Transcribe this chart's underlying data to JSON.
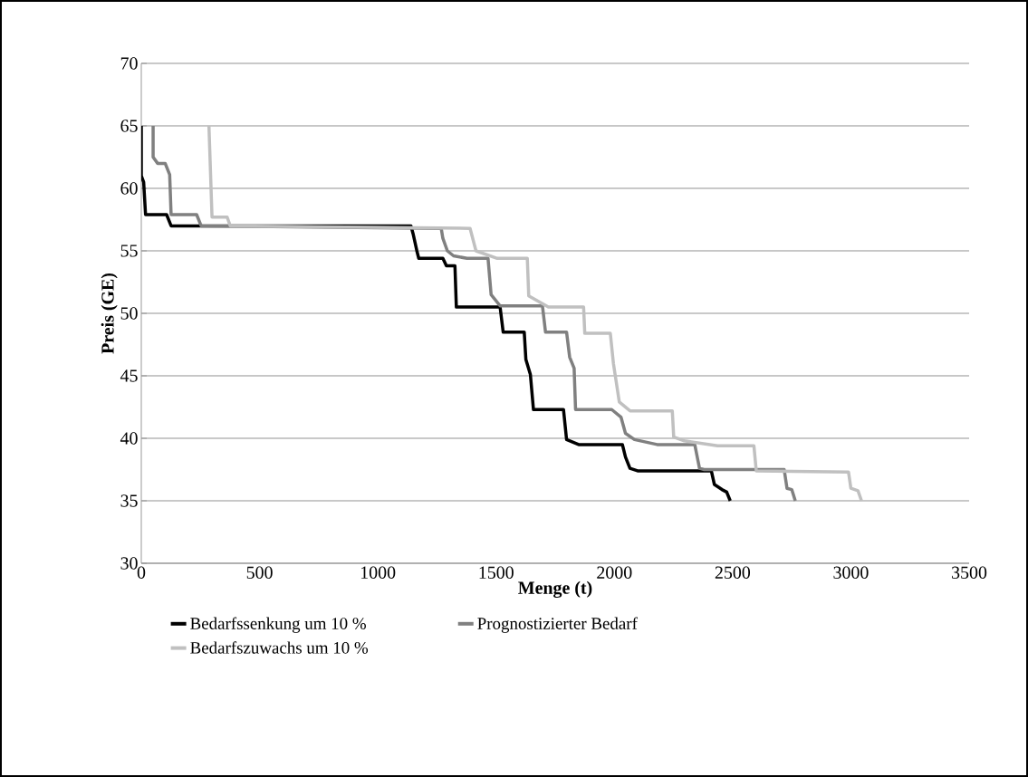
{
  "chart_data": {
    "type": "line",
    "xlabel": "Menge (t)",
    "ylabel": "Preis (GE)",
    "xlim": [
      0,
      3500
    ],
    "xticks": [
      0,
      500,
      1000,
      1500,
      2000,
      2500,
      3000,
      3500
    ],
    "ylim": [
      30,
      70
    ],
    "yticks": [
      30,
      35,
      40,
      45,
      50,
      55,
      60,
      65,
      70
    ],
    "grid": "y",
    "legend": "bottom",
    "marker": "none",
    "line_style": "solid",
    "series": [
      {
        "name": "Bedarfssenkung um 10 %",
        "color": "#000000",
        "x": [
          0,
          0,
          10,
          18,
          107,
          126,
          1140,
          1150,
          1165,
          1173,
          1275,
          1290,
          1326,
          1332,
          1517,
          1530,
          1619,
          1626,
          1645,
          1658,
          1785,
          1798,
          1849,
          2034,
          2047,
          2066,
          2098,
          2410,
          2423,
          2455,
          2475,
          2490
        ],
        "values": [
          65,
          61,
          60.5,
          57.9,
          57.9,
          57,
          57,
          56.3,
          55,
          54.4,
          54.4,
          53.8,
          53.8,
          50.5,
          50.5,
          48.5,
          48.5,
          46.3,
          45.1,
          42.3,
          42.3,
          39.9,
          39.5,
          39.5,
          38.5,
          37.6,
          37.4,
          37.4,
          36.3,
          35.9,
          35.7,
          35
        ]
      },
      {
        "name": "Prognostizierter Bedarf",
        "color": "#808080",
        "x": [
          50,
          50,
          69,
          101,
          120,
          126,
          234,
          253,
          1268,
          1275,
          1294,
          1320,
          1377,
          1466,
          1479,
          1517,
          1696,
          1709,
          1798,
          1811,
          1830,
          1836,
          1989,
          2028,
          2047,
          2085,
          2181,
          2340,
          2360,
          2380,
          2718,
          2730,
          2750,
          2765
        ],
        "values": [
          65,
          62.5,
          62,
          62,
          61.1,
          57.9,
          57.9,
          57,
          56.8,
          56,
          55,
          54.6,
          54.4,
          54.4,
          51.5,
          50.6,
          50.6,
          48.5,
          48.5,
          46.5,
          45.6,
          42.3,
          42.3,
          41.7,
          40.4,
          39.9,
          39.5,
          39.5,
          37.6,
          37.5,
          37.5,
          36,
          35.9,
          35
        ]
      },
      {
        "name": "Bedarfszuwachs um 10 %",
        "color": "#c0c0c0",
        "x": [
          286,
          299,
          363,
          376,
          1390,
          1415,
          1505,
          1632,
          1638,
          1721,
          1870,
          1875,
          1983,
          1996,
          2021,
          2066,
          2245,
          2251,
          2296,
          2436,
          2590,
          2600,
          2990,
          3000,
          3030,
          3045
        ],
        "values": [
          65,
          57.7,
          57.7,
          57,
          56.8,
          55,
          54.4,
          54.4,
          51.4,
          50.5,
          50.5,
          48.4,
          48.4,
          46,
          42.9,
          42.2,
          42.2,
          40.1,
          39.8,
          39.4,
          39.4,
          37.4,
          37.3,
          36,
          35.8,
          35
        ]
      }
    ]
  }
}
